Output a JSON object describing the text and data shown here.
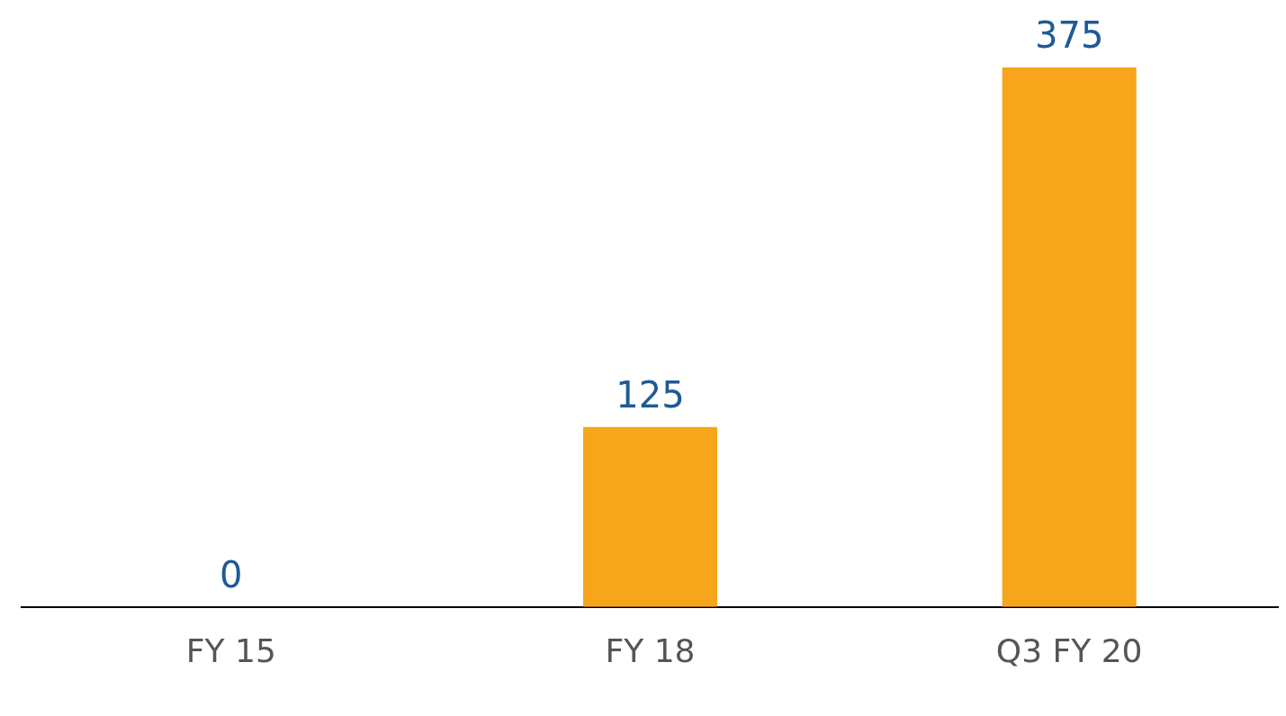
{
  "chart_data": {
    "type": "bar",
    "categories": [
      "FY 15",
      "FY 18",
      "Q3 FY 20"
    ],
    "values": [
      0,
      125,
      375
    ],
    "color": "#f7a51b",
    "data_labels": true,
    "grid": false,
    "legend": false
  }
}
